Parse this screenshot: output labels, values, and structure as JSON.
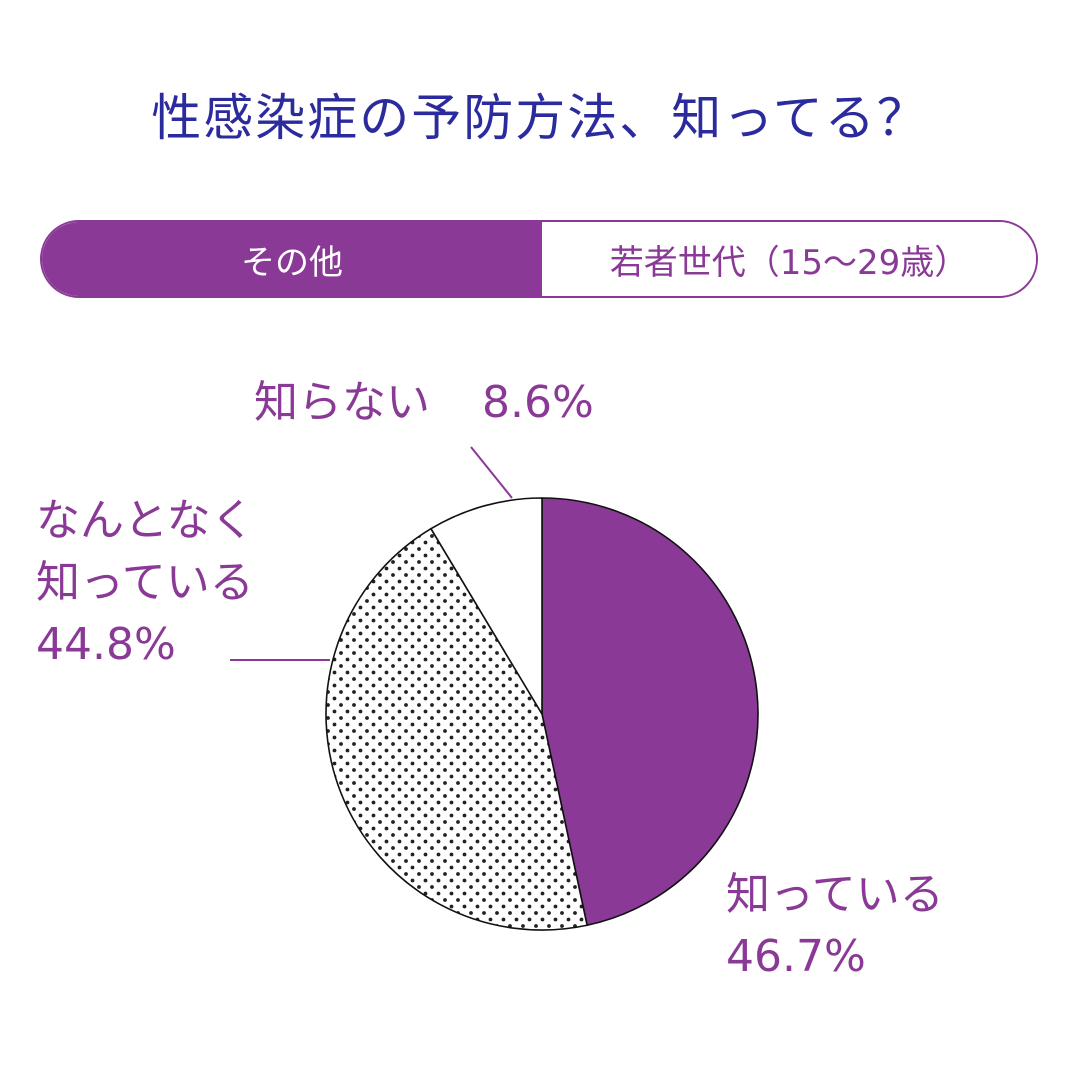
{
  "title": "性感染症の予防方法、知ってる？",
  "tabs": [
    {
      "label": "その他",
      "active": true
    },
    {
      "label": "若者世代（15〜29歳）",
      "active": false
    }
  ],
  "colors": {
    "accent": "#8a3a96",
    "title": "#2b2b9e"
  },
  "chart_data": {
    "type": "pie",
    "slices": [
      {
        "label": "知っている",
        "value": 46.7,
        "display": "46.7%",
        "fill": "solid",
        "color": "#8a3a96"
      },
      {
        "label": "なんとなく知っている",
        "label_lines": [
          "なんとなく",
          "知っている"
        ],
        "value": 44.8,
        "display": "44.8%",
        "fill": "dotted"
      },
      {
        "label": "知らない",
        "value": 8.6,
        "display": "8.6%",
        "fill": "white"
      }
    ],
    "start": "12 o'clock",
    "direction": "clockwise"
  }
}
